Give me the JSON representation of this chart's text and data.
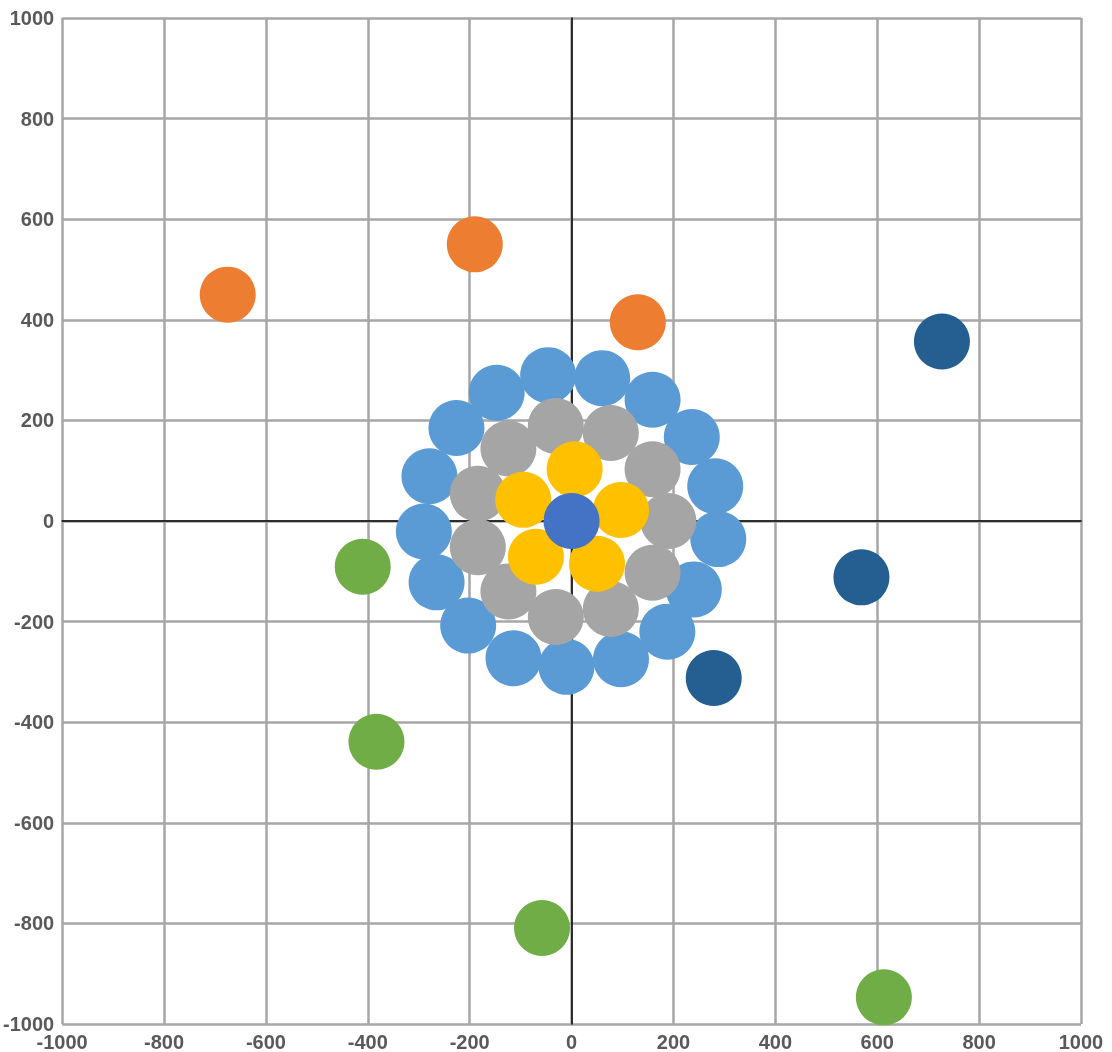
{
  "chart_data": {
    "type": "scatter",
    "marker": "circle",
    "grid": true,
    "xlim": [
      -1000,
      1000
    ],
    "xticks": [
      -1000,
      -800,
      -600,
      -400,
      -200,
      0,
      200,
      400,
      600,
      800,
      1000
    ],
    "ylim": [
      -1000,
      1000
    ],
    "yticks": [
      -1000,
      -800,
      -600,
      -400,
      -200,
      0,
      200,
      400,
      600,
      800,
      1000
    ],
    "series": [
      {
        "color": "#ed7d31",
        "x": [
          -675,
          -190,
          130
        ],
        "values": [
          450,
          550,
          395
        ]
      },
      {
        "color": "#255e91",
        "x": [
          727,
          569,
          279
        ],
        "values": [
          357,
          -112,
          -312
        ]
      },
      {
        "color": "#70ad47",
        "x": [
          -410,
          -383,
          -58,
          613
        ],
        "values": [
          -91,
          -439,
          -809,
          -947
        ]
      },
      {
        "color": "#5b9bd5",
        "x": [
          -46,
          60,
          159,
          236,
          282,
          288,
          240,
          188,
          97,
          -10,
          -114,
          -203,
          -265,
          -290,
          -279,
          -226,
          -147
        ],
        "values": [
          290,
          284,
          241,
          167,
          69,
          -36,
          -136,
          -220,
          -275,
          -290,
          -273,
          -208,
          -122,
          -21,
          89,
          185,
          255
        ]
      },
      {
        "color": "#a5a5a5",
        "x": [
          -31,
          77,
          159,
          190,
          159,
          77,
          -31,
          -124,
          -184,
          -184,
          -124
        ],
        "values": [
          189,
          175,
          103,
          0,
          -103,
          -175,
          -191,
          -140,
          -52,
          54,
          144
        ]
      },
      {
        "color": "#ffc000",
        "x": [
          6,
          97,
          50,
          -70,
          -95
        ],
        "values": [
          103,
          22,
          -85,
          -71,
          42
        ]
      },
      {
        "color": "#4472c4",
        "x": [
          0
        ],
        "values": [
          0
        ]
      }
    ]
  }
}
